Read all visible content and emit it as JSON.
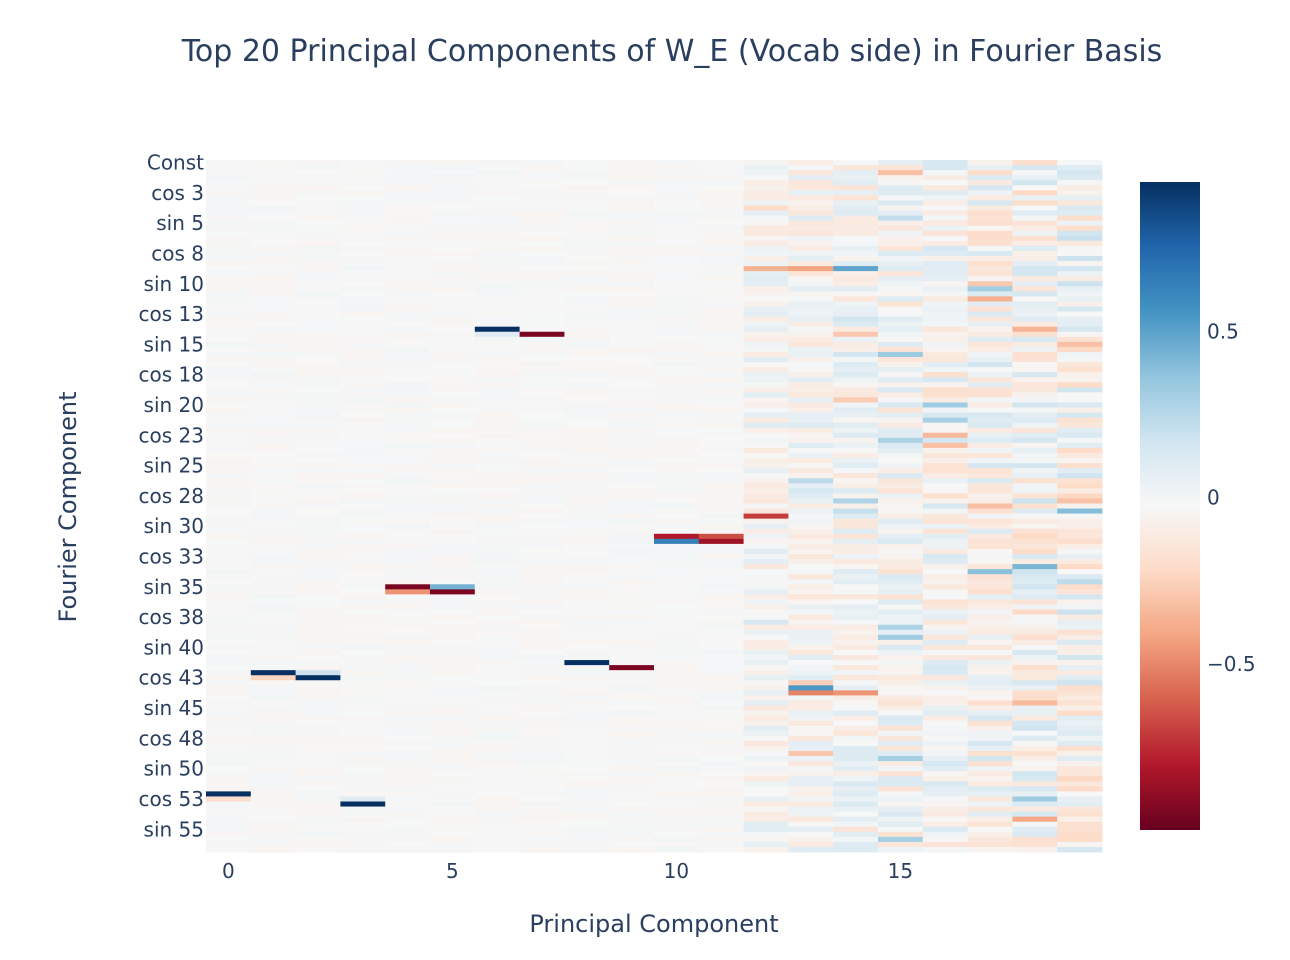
{
  "chart_data": {
    "type": "heatmap",
    "title": "Top 20 Principal Components of W_E (Vocab side) in Fourier Basis",
    "xlabel": "Principal Component",
    "ylabel": "Fourier Component",
    "x_range": [
      0,
      19
    ],
    "x_ticks": [
      "0",
      "5",
      "10",
      "15"
    ],
    "x_tick_values": [
      0,
      5,
      10,
      15
    ],
    "y_tick_labels": [
      "Const",
      "cos 3",
      "sin 5",
      "cos 8",
      "sin 10",
      "cos 13",
      "sin 15",
      "cos 18",
      "sin 20",
      "cos 23",
      "sin 25",
      "cos 28",
      "sin 30",
      "cos 33",
      "sin 35",
      "cos 38",
      "sin 40",
      "cos 43",
      "sin 45",
      "cos 48",
      "sin 50",
      "cos 53",
      "sin 55"
    ],
    "y_tick_rows": [
      0,
      6,
      12,
      18,
      24,
      30,
      36,
      42,
      48,
      54,
      60,
      66,
      72,
      78,
      84,
      90,
      96,
      102,
      108,
      114,
      120,
      126,
      132
    ],
    "n_rows": 137,
    "colorscale": "RdBu",
    "zrange": [
      -1,
      0.95
    ],
    "colorbar_ticks": [
      "0.5",
      "0",
      "−0.5"
    ],
    "colorbar_tick_values": [
      0.5,
      0,
      -0.5
    ],
    "strong_cells": [
      {
        "pc": 0,
        "row": 125,
        "value": 0.95
      },
      {
        "pc": 0,
        "row": 126,
        "value": -0.18
      },
      {
        "pc": 1,
        "row": 101,
        "value": 0.95
      },
      {
        "pc": 1,
        "row": 102,
        "value": -0.22
      },
      {
        "pc": 2,
        "row": 102,
        "value": 0.95
      },
      {
        "pc": 2,
        "row": 101,
        "value": 0.2
      },
      {
        "pc": 3,
        "row": 127,
        "value": 0.95
      },
      {
        "pc": 3,
        "row": 126,
        "value": 0.12
      },
      {
        "pc": 4,
        "row": 84,
        "value": -0.95
      },
      {
        "pc": 4,
        "row": 85,
        "value": -0.45
      },
      {
        "pc": 5,
        "row": 84,
        "value": 0.45
      },
      {
        "pc": 5,
        "row": 85,
        "value": -0.95
      },
      {
        "pc": 6,
        "row": 33,
        "value": 0.95
      },
      {
        "pc": 6,
        "row": 34,
        "value": 0.12
      },
      {
        "pc": 7,
        "row": 34,
        "value": -0.95
      },
      {
        "pc": 8,
        "row": 99,
        "value": 0.95
      },
      {
        "pc": 9,
        "row": 100,
        "value": -0.95
      },
      {
        "pc": 10,
        "row": 74,
        "value": -0.8
      },
      {
        "pc": 10,
        "row": 75,
        "value": 0.65
      },
      {
        "pc": 11,
        "row": 74,
        "value": -0.65
      },
      {
        "pc": 11,
        "row": 75,
        "value": -0.85
      },
      {
        "pc": 12,
        "row": 70,
        "value": -0.7
      },
      {
        "pc": 12,
        "row": 21,
        "value": -0.35
      },
      {
        "pc": 13,
        "row": 104,
        "value": 0.55
      },
      {
        "pc": 13,
        "row": 105,
        "value": -0.5
      },
      {
        "pc": 13,
        "row": 21,
        "value": -0.4
      },
      {
        "pc": 14,
        "row": 21,
        "value": 0.5
      },
      {
        "pc": 14,
        "row": 105,
        "value": -0.45
      },
      {
        "pc": 15,
        "row": 38,
        "value": 0.35
      },
      {
        "pc": 15,
        "row": 55,
        "value": 0.3
      },
      {
        "pc": 15,
        "row": 2,
        "value": -0.3
      },
      {
        "pc": 16,
        "row": 56,
        "value": -0.3
      },
      {
        "pc": 17,
        "row": 81,
        "value": 0.4
      },
      {
        "pc": 17,
        "row": 68,
        "value": -0.3
      },
      {
        "pc": 19,
        "row": 36,
        "value": -0.3
      },
      {
        "pc": 19,
        "row": 83,
        "value": 0.25
      }
    ]
  }
}
